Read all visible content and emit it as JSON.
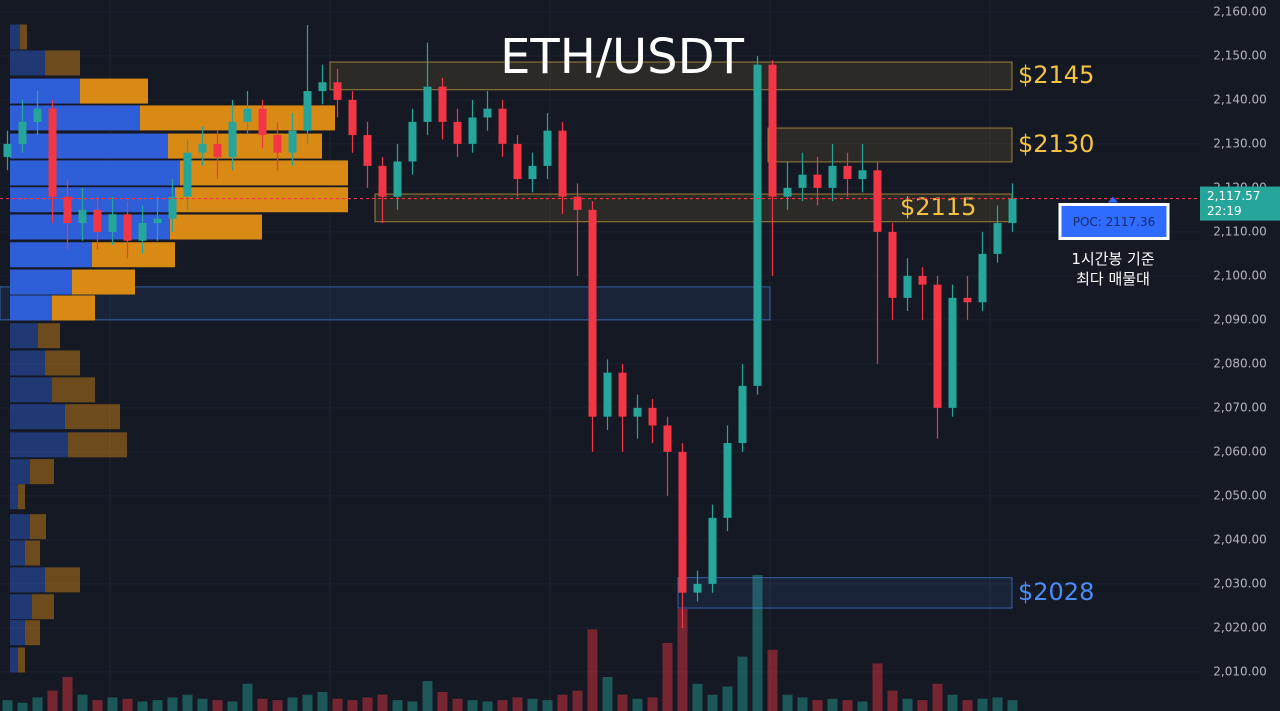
{
  "chart_data": {
    "type": "candlestick",
    "title": "ETH/USDT",
    "ylim": [
      2001.1,
      2162.7
    ],
    "yticks": [
      {
        "value": 2010,
        "label": "2,010.00"
      },
      {
        "value": 2020,
        "label": "2,020.00"
      },
      {
        "value": 2030,
        "label": "2,030.00"
      },
      {
        "value": 2040,
        "label": "2,040.00"
      },
      {
        "value": 2050,
        "label": "2,050.00"
      },
      {
        "value": 2060,
        "label": "2,060.00"
      },
      {
        "value": 2070,
        "label": "2,070.00"
      },
      {
        "value": 2080,
        "label": "2,080.00"
      },
      {
        "value": 2090,
        "label": "2,090.00"
      },
      {
        "value": 2100,
        "label": "2,100.00"
      },
      {
        "value": 2110,
        "label": "2,110.00"
      },
      {
        "value": 2120,
        "label": "2,120.00"
      },
      {
        "value": 2130,
        "label": "2,130.00"
      },
      {
        "value": 2140,
        "label": "2,140.00"
      },
      {
        "value": 2150,
        "label": "2,150.00"
      },
      {
        "value": 2160,
        "label": "2,160.00"
      }
    ],
    "grid": true,
    "up_color": "#26a69a",
    "down_color": "#f23645",
    "open": [
      2127,
      2130,
      2135,
      2138,
      2118,
      2112,
      2115,
      2110,
      2114,
      2108,
      2112,
      2113,
      2118,
      2128,
      2130,
      2127,
      2135,
      2138,
      2132,
      2128,
      2133,
      2142,
      2144,
      2140,
      2132,
      2125,
      2118,
      2126,
      2135,
      2143,
      2135,
      2130,
      2136,
      2138,
      2130,
      2122,
      2125,
      2133,
      2118,
      2115,
      2068,
      2078,
      2068,
      2070,
      2066,
      2060,
      2028,
      2030,
      2045,
      2062,
      2075,
      2148,
      2118,
      2120,
      2123,
      2120,
      2125,
      2122,
      2124,
      2110,
      2095,
      2100,
      2098,
      2070,
      2095,
      2094,
      2105,
      2112
    ],
    "high": [
      2133,
      2140,
      2142,
      2140,
      2122,
      2120,
      2118,
      2118,
      2117,
      2116,
      2118,
      2122,
      2131,
      2134,
      2133,
      2140,
      2142,
      2140,
      2135,
      2137,
      2157,
      2148,
      2147,
      2142,
      2135,
      2127,
      2130,
      2138,
      2153,
      2145,
      2138,
      2140,
      2142,
      2140,
      2132,
      2128,
      2137,
      2135,
      2121,
      2117,
      2081,
      2080,
      2073,
      2072,
      2068,
      2062,
      2033,
      2048,
      2066,
      2080,
      2150,
      2149,
      2126,
      2128,
      2127,
      2130,
      2128,
      2130,
      2126,
      2112,
      2104,
      2102,
      2100,
      2098,
      2100,
      2110,
      2116,
      2121
    ],
    "low": [
      2124,
      2128,
      2132,
      2112,
      2106,
      2108,
      2106,
      2107,
      2104,
      2105,
      2108,
      2110,
      2115,
      2125,
      2122,
      2124,
      2132,
      2129,
      2124,
      2125,
      2130,
      2139,
      2136,
      2128,
      2120,
      2112,
      2115,
      2123,
      2132,
      2131,
      2127,
      2128,
      2133,
      2127,
      2118,
      2119,
      2122,
      2114,
      2100,
      2060,
      2065,
      2060,
      2063,
      2062,
      2050,
      2020,
      2026,
      2028,
      2042,
      2060,
      2073,
      2100,
      2115,
      2117,
      2116,
      2117,
      2118,
      2119,
      2080,
      2090,
      2092,
      2090,
      2063,
      2068,
      2090,
      2092,
      2103,
      2110
    ],
    "close": [
      2130,
      2135,
      2138,
      2118,
      2112,
      2115,
      2110,
      2114,
      2108,
      2112,
      2113,
      2118,
      2128,
      2130,
      2127,
      2135,
      2138,
      2132,
      2128,
      2133,
      2142,
      2144,
      2140,
      2132,
      2125,
      2118,
      2126,
      2135,
      2143,
      2135,
      2130,
      2136,
      2138,
      2130,
      2122,
      2125,
      2133,
      2118,
      2115,
      2068,
      2078,
      2068,
      2070,
      2066,
      2060,
      2028,
      2030,
      2045,
      2062,
      2075,
      2148,
      2118,
      2120,
      2123,
      2120,
      2125,
      2122,
      2124,
      2110,
      2095,
      2100,
      2098,
      2070,
      2095,
      2094,
      2105,
      2112,
      2117.57
    ],
    "volume": [
      8,
      6,
      10,
      15,
      25,
      12,
      8,
      10,
      9,
      7,
      8,
      10,
      12,
      9,
      8,
      7,
      20,
      9,
      8,
      10,
      12,
      14,
      9,
      8,
      10,
      12,
      8,
      7,
      22,
      14,
      9,
      8,
      7,
      8,
      10,
      9,
      8,
      12,
      15,
      60,
      25,
      12,
      9,
      10,
      50,
      75,
      20,
      12,
      18,
      40,
      100,
      45,
      12,
      10,
      8,
      9,
      8,
      7,
      35,
      15,
      9,
      8,
      20,
      12,
      8,
      9,
      10,
      8
    ],
    "volume_profile": {
      "buy_color": "#2f5fd8",
      "sell_color": "#d98a14",
      "value_area": [
        2089,
        2146
      ],
      "rows": [
        {
          "price": 2154.3,
          "buy": 10,
          "sell": 7
        },
        {
          "price": 2148.4,
          "buy": 35,
          "sell": 35
        },
        {
          "price": 2142.0,
          "buy": 70,
          "sell": 68
        },
        {
          "price": 2135.9,
          "buy": 130,
          "sell": 195
        },
        {
          "price": 2129.5,
          "buy": 158,
          "sell": 154
        },
        {
          "price": 2123.4,
          "buy": 170,
          "sell": 168
        },
        {
          "price": 2117.3,
          "buy": 165,
          "sell": 173
        },
        {
          "price": 2111.1,
          "buy": 160,
          "sell": 92
        },
        {
          "price": 2104.8,
          "buy": 82,
          "sell": 83
        },
        {
          "price": 2098.6,
          "buy": 62,
          "sell": 63
        },
        {
          "price": 2092.7,
          "buy": 42,
          "sell": 43
        },
        {
          "price": 2086.4,
          "buy": 28,
          "sell": 22
        },
        {
          "price": 2080.2,
          "buy": 35,
          "sell": 35
        },
        {
          "price": 2074.1,
          "buy": 42,
          "sell": 43
        },
        {
          "price": 2068.0,
          "buy": 55,
          "sell": 55
        },
        {
          "price": 2061.6,
          "buy": 58,
          "sell": 59
        },
        {
          "price": 2055.5,
          "buy": 20,
          "sell": 24
        },
        {
          "price": 2049.8,
          "buy": 8,
          "sell": 7
        },
        {
          "price": 2043.0,
          "buy": 20,
          "sell": 16
        },
        {
          "price": 2037.0,
          "buy": 15,
          "sell": 15
        },
        {
          "price": 2030.9,
          "buy": 35,
          "sell": 35
        },
        {
          "price": 2024.8,
          "buy": 22,
          "sell": 22
        },
        {
          "price": 2018.9,
          "buy": 15,
          "sell": 15
        },
        {
          "price": 2012.7,
          "buy": 8,
          "sell": 7
        }
      ]
    },
    "zones": [
      {
        "low": 2142.3,
        "high": 2148.6,
        "label": "$2145",
        "color": "#f5c242"
      },
      {
        "low": 2125.9,
        "high": 2133.6,
        "label": "$2130",
        "color": "#f5c242"
      },
      {
        "low": 2112.3,
        "high": 2118.6,
        "label": "$2115",
        "color": "#f5c242"
      },
      {
        "low": 2090.0,
        "high": 2097.5,
        "color": "#4a8df8"
      },
      {
        "low": 2024.5,
        "high": 2031.4,
        "label": "$2028",
        "color": "#4a8df8"
      }
    ],
    "last_price": {
      "value": 2117.57,
      "label": "2,117.57"
    },
    "countdown": "22:19",
    "poc": {
      "value": 2117.36,
      "label": "POC: 2117.36"
    },
    "poc_note": [
      "1시간봉 기준",
      "최다 매물대"
    ]
  }
}
